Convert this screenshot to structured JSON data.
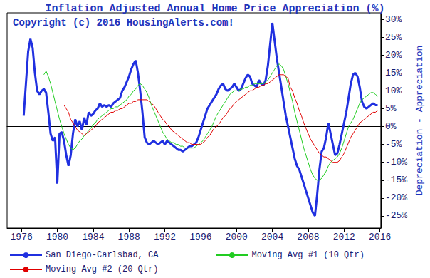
{
  "chart_data": {
    "type": "line",
    "title": "Inflation Adjusted Annual Home Price Appreciation (%)",
    "annotations": [
      "Copyright (c) 2016 HousingAlerts.com!"
    ],
    "ylabel": "Depreciation - Appreciation",
    "x": [
      1976,
      1976.25,
      1976.5,
      1976.75,
      1977,
      1977.25,
      1977.5,
      1977.75,
      1978,
      1978.25,
      1978.5,
      1978.75,
      1979,
      1979.25,
      1979.5,
      1979.75,
      1980,
      1980.25,
      1980.5,
      1980.75,
      1981,
      1981.25,
      1981.5,
      1981.75,
      1982,
      1982.25,
      1982.5,
      1982.75,
      1983,
      1983.25,
      1983.5,
      1983.75,
      1984,
      1984.25,
      1984.5,
      1984.75,
      1985,
      1985.25,
      1985.5,
      1985.75,
      1986,
      1986.25,
      1986.5,
      1986.75,
      1987,
      1987.25,
      1987.5,
      1987.75,
      1988,
      1988.25,
      1988.5,
      1988.75,
      1989,
      1989.25,
      1989.5,
      1989.75,
      1990,
      1990.25,
      1990.5,
      1990.75,
      1991,
      1991.25,
      1991.5,
      1991.75,
      1992,
      1992.25,
      1992.5,
      1992.75,
      1993,
      1993.25,
      1993.5,
      1993.75,
      1994,
      1994.25,
      1994.5,
      1994.75,
      1995,
      1995.25,
      1995.5,
      1995.75,
      1996,
      1996.25,
      1996.5,
      1996.75,
      1997,
      1997.25,
      1997.5,
      1997.75,
      1998,
      1998.25,
      1998.5,
      1998.75,
      1999,
      1999.25,
      1999.5,
      1999.75,
      2000,
      2000.25,
      2000.5,
      2000.75,
      2001,
      2001.25,
      2001.5,
      2001.75,
      2002,
      2002.25,
      2002.5,
      2002.75,
      2003,
      2003.25,
      2003.5,
      2003.75,
      2004,
      2004.25,
      2004.5,
      2004.75,
      2005,
      2005.25,
      2005.5,
      2005.75,
      2006,
      2006.25,
      2006.5,
      2006.75,
      2007,
      2007.25,
      2007.5,
      2007.75,
      2008,
      2008.25,
      2008.5,
      2008.75,
      2009,
      2009.25,
      2009.5,
      2009.75,
      2010,
      2010.25,
      2010.5,
      2010.75,
      2011,
      2011.25,
      2011.5,
      2011.75,
      2012,
      2012.25,
      2012.5,
      2012.75,
      2013,
      2013.25,
      2013.5,
      2013.75,
      2014,
      2014.25,
      2014.5,
      2014.75,
      2015,
      2015.25,
      2015.5,
      2015.75,
      2016
    ],
    "series": [
      {
        "name": "San Diego-Carlsbad, CA",
        "color": "#2030e0",
        "line_style": "thick",
        "values": [
          null,
          3,
          12,
          21,
          24.5,
          22,
          15,
          10,
          9,
          10,
          10.5,
          9.5,
          4,
          -2,
          -4,
          -3,
          -16,
          -2,
          -1.5,
          -4,
          -8,
          -11,
          -8,
          -2,
          2,
          0,
          1.5,
          -1,
          2.5,
          0.5,
          4,
          3,
          3.5,
          4.5,
          5,
          6.5,
          5.5,
          6,
          5.5,
          6,
          5.5,
          6.5,
          7,
          7.5,
          8,
          10,
          11,
          12.5,
          14,
          16,
          17.5,
          18.5,
          15,
          10,
          4,
          -3,
          -4.5,
          -5,
          -4.5,
          -4,
          -4.5,
          -5,
          -4.5,
          -4,
          -5,
          -4,
          -4.5,
          -5,
          -5.5,
          -6,
          -6.5,
          -6.5,
          -7,
          -6.5,
          -6,
          -5.5,
          -5.5,
          -5,
          -4.5,
          -3,
          -1,
          1,
          3,
          5,
          6,
          7,
          8,
          9,
          10.5,
          11.5,
          12,
          10.5,
          10,
          10.5,
          11,
          12,
          11,
          10,
          10.5,
          12,
          13.5,
          14.5,
          14,
          12,
          11.5,
          11,
          13,
          12,
          11.5,
          13,
          17,
          23,
          29,
          24,
          19,
          15,
          11,
          7,
          3,
          0,
          -3,
          -6,
          -9,
          -11,
          -12,
          -14,
          -16,
          -18,
          -20,
          -22,
          -24,
          -25,
          -19,
          -12,
          -7,
          -6,
          -3,
          1,
          -2,
          -5,
          -8,
          -7.5,
          -5,
          -2,
          1,
          4,
          8,
          12,
          14.5,
          15,
          14,
          11,
          7,
          5.5,
          5,
          5.5,
          6,
          6.5,
          6,
          6,
          null
        ]
      },
      {
        "name": "Moving Avg #1 (10 Qtr)",
        "color": "#22cc22",
        "line_style": "thin",
        "values": [
          null,
          null,
          null,
          null,
          null,
          null,
          null,
          null,
          null,
          null,
          14.5,
          15.5,
          14,
          12,
          9.5,
          7,
          4.5,
          2,
          0,
          -2,
          -3.5,
          -5,
          -6,
          -6.5,
          -6,
          -5,
          -4,
          -3.5,
          -2.5,
          -2,
          -1,
          -0.5,
          0.5,
          1,
          2,
          2.5,
          3,
          3.5,
          4,
          4.5,
          5,
          5,
          5.5,
          5.5,
          6,
          6.5,
          7,
          7.5,
          8.5,
          9,
          10,
          10.5,
          11.5,
          12,
          11.5,
          10.5,
          9.5,
          8,
          6,
          4.5,
          3,
          1.5,
          0,
          -1.5,
          -2.5,
          -3.5,
          -4,
          -4.5,
          -4.5,
          -5,
          -5,
          -5.5,
          -5.5,
          -6,
          -6,
          -6,
          -6,
          -6,
          -5.5,
          -5,
          -4.5,
          -4,
          -3,
          -2,
          -1,
          0,
          1.5,
          3,
          4,
          5,
          6,
          7,
          8,
          9,
          9.5,
          10,
          10,
          10,
          10.5,
          10.5,
          11,
          11,
          11.5,
          11.5,
          12,
          12,
          12,
          12,
          12,
          12.5,
          13,
          14,
          15,
          16,
          17,
          17.5,
          17,
          16,
          14,
          12,
          9.5,
          7,
          4,
          1.5,
          -1,
          -3.5,
          -6,
          -8,
          -10,
          -12,
          -13.5,
          -14.5,
          -15,
          -15,
          -14.5,
          -13.5,
          -12.5,
          -11,
          -10,
          -9.5,
          -9,
          -8.5,
          -7.5,
          -6,
          -4,
          -2,
          0,
          1,
          2,
          3.5,
          5,
          6.5,
          7.5,
          8,
          8.5,
          9,
          9.5,
          9.5,
          9,
          8.5,
          null
        ]
      },
      {
        "name": "Moving Avg #2 (20 Qtr)",
        "color": "#e00000",
        "line_style": "thin",
        "values": [
          null,
          null,
          null,
          null,
          null,
          null,
          null,
          null,
          null,
          null,
          null,
          null,
          null,
          null,
          null,
          null,
          null,
          null,
          null,
          6,
          5,
          4,
          2,
          1,
          0,
          -1,
          -1.5,
          -2,
          -2.5,
          -2,
          -1.5,
          -1,
          -0.5,
          0,
          1,
          1.5,
          2,
          2.5,
          3,
          3.5,
          4,
          4,
          4.5,
          4.5,
          5,
          5,
          5.5,
          6,
          6.5,
          6.5,
          7,
          7,
          7.5,
          7.5,
          7.5,
          7.5,
          7.5,
          7,
          6.5,
          6,
          5,
          4,
          3,
          2,
          1.5,
          0.5,
          0,
          -1,
          -1.5,
          -2,
          -2.5,
          -3,
          -3.5,
          -4,
          -4.5,
          -4.5,
          -5,
          -5,
          -5,
          -5,
          -5,
          -4.5,
          -4,
          -3,
          -2.5,
          -1.5,
          -0.5,
          0,
          0.5,
          1.5,
          2.5,
          3,
          4,
          5,
          5.5,
          6.5,
          7,
          7.5,
          8,
          8.5,
          9,
          9.5,
          10,
          10,
          10.5,
          11,
          11,
          11.5,
          11.5,
          12,
          12,
          12.5,
          13,
          13.5,
          14,
          14.5,
          14.5,
          14.5,
          14,
          13.5,
          11,
          10,
          8,
          6.5,
          4.5,
          3,
          1,
          -0.5,
          -2,
          -3.5,
          -4.5,
          -5.5,
          -6.5,
          -7.5,
          -8,
          -8.5,
          -8.5,
          -9,
          -9.5,
          -10,
          -10,
          -10,
          -9.5,
          -8.5,
          -7.5,
          -6,
          -4.5,
          -3,
          -2,
          -1,
          0,
          1,
          1.5,
          2,
          2.5,
          3,
          3.5,
          4,
          4,
          4.5,
          null
        ]
      }
    ],
    "xlim": [
      1974.4,
      2016.1
    ],
    "xticks": [
      1976,
      1980,
      1984,
      1988,
      1992,
      1996,
      2000,
      2004,
      2008,
      2012,
      2016
    ],
    "ylim": [
      -28.4,
      31.8
    ],
    "yticks": [
      {
        "value": -25,
        "label": "-25%"
      },
      {
        "value": -20,
        "label": "-20%"
      },
      {
        "value": -15,
        "label": "-15%"
      },
      {
        "value": -10,
        "label": "-10%"
      },
      {
        "value": -5,
        "label": "-5%"
      },
      {
        "value": 0,
        "label": "0%"
      },
      {
        "value": 5,
        "label": "5%"
      },
      {
        "value": 10,
        "label": "10%"
      },
      {
        "value": 15,
        "label": "15%"
      },
      {
        "value": 20,
        "label": "20%"
      },
      {
        "value": 25,
        "label": "25%"
      },
      {
        "value": 30,
        "label": "30%"
      }
    ],
    "grid": false,
    "legend": "bottom"
  }
}
